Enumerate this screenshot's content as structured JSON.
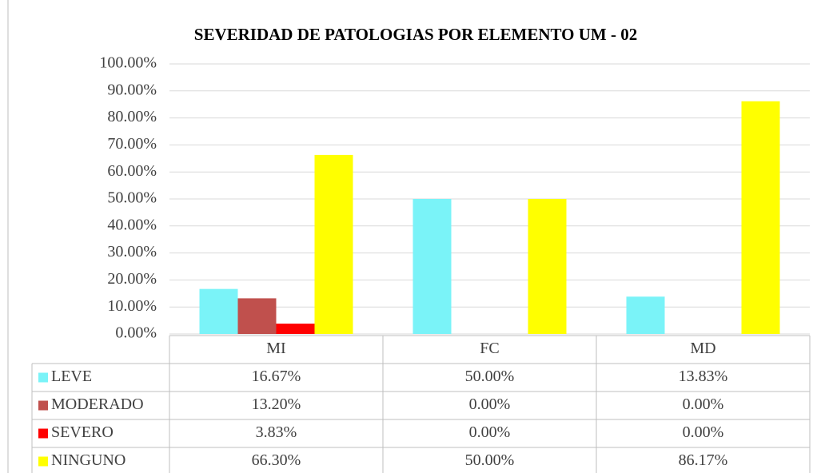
{
  "chart_data": {
    "type": "bar",
    "title": "SEVERIDAD  DE PATOLOGIAS  POR ELEMENTO UM - 02",
    "categories": [
      "MI",
      "FC",
      "MD"
    ],
    "series": [
      {
        "name": "LEVE",
        "color": "#7af3f8",
        "values": [
          16.67,
          50.0,
          13.83
        ],
        "value_labels": [
          "16.67%",
          "50.00%",
          "13.83%"
        ]
      },
      {
        "name": "MODERADO",
        "color": "#c0504d",
        "values": [
          13.2,
          0.0,
          0.0
        ],
        "value_labels": [
          "13.20%",
          "0.00%",
          "0.00%"
        ]
      },
      {
        "name": "SEVERO",
        "color": "#ff0000",
        "values": [
          3.83,
          0.0,
          0.0
        ],
        "value_labels": [
          "3.83%",
          "0.00%",
          "0.00%"
        ]
      },
      {
        "name": "NINGUNO",
        "color": "#ffff00",
        "values": [
          66.3,
          50.0,
          86.17
        ],
        "value_labels": [
          "66.30%",
          "50.00%",
          "86.17%"
        ]
      }
    ],
    "ylim": [
      0,
      100
    ],
    "yticks": [
      {
        "value": 0,
        "label": "0.00%"
      },
      {
        "value": 10,
        "label": "10.00%"
      },
      {
        "value": 20,
        "label": "20.00%"
      },
      {
        "value": 30,
        "label": "30.00%"
      },
      {
        "value": 40,
        "label": "40.00%"
      },
      {
        "value": 50,
        "label": "50.00%"
      },
      {
        "value": 60,
        "label": "60.00%"
      },
      {
        "value": 70,
        "label": "70.00%"
      },
      {
        "value": 80,
        "label": "80.00%"
      },
      {
        "value": 90,
        "label": "90.00%"
      },
      {
        "value": 100,
        "label": "100.00%"
      }
    ],
    "grid": true
  }
}
